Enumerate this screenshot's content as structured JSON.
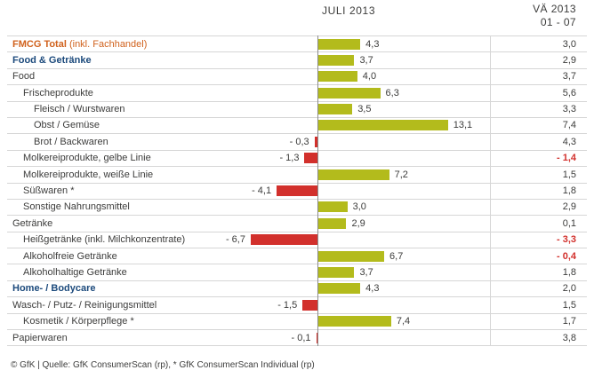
{
  "header": {
    "period_label": "JULI 2013",
    "right_col_line1": "VÄ 2013",
    "right_col_line2": "01 - 07"
  },
  "footer": {
    "source": "© GfK | Quelle: GfK ConsumerScan (rp), * GfK ConsumerScan Individual (rp)"
  },
  "colors": {
    "bar_positive": "#b3bb1c",
    "bar_negative": "#d2302c",
    "label_default": "#3c3c3b",
    "label_total": "#d0611c",
    "label_section": "#1c4a7c",
    "negative_value_text": "#d2302c",
    "grid_line": "#d6d6d6",
    "axis_line": "#8c8c8c"
  },
  "chart_data": {
    "type": "bar",
    "orientation": "horizontal",
    "title": "JULI 2013",
    "right_column_title": "VÄ 2013 01 - 07",
    "unit": "percent change vs. prior year",
    "x_range_hint": [
      -7,
      14
    ],
    "grid": "horizontal row separator lines",
    "legend": "none",
    "rows": [
      {
        "label": "FMCG Total",
        "note": " (inkl. Fachhandel)",
        "indent": 0,
        "style": "total",
        "value": 4.3,
        "value_display": "4,3",
        "vae": 3.0,
        "vae_display": "3,0"
      },
      {
        "label": "Food & Getränke",
        "note": "",
        "indent": 0,
        "style": "section",
        "value": 3.7,
        "value_display": "3,7",
        "vae": 2.9,
        "vae_display": "2,9"
      },
      {
        "label": "Food",
        "note": "",
        "indent": 0,
        "style": "normal",
        "value": 4.0,
        "value_display": "4,0",
        "vae": 3.7,
        "vae_display": "3,7"
      },
      {
        "label": "Frischeprodukte",
        "note": "",
        "indent": 1,
        "style": "normal",
        "value": 6.3,
        "value_display": "6,3",
        "vae": 5.6,
        "vae_display": "5,6"
      },
      {
        "label": "Fleisch / Wurstwaren",
        "note": "",
        "indent": 2,
        "style": "normal",
        "value": 3.5,
        "value_display": "3,5",
        "vae": 3.3,
        "vae_display": "3,3"
      },
      {
        "label": "Obst / Gemüse",
        "note": "",
        "indent": 2,
        "style": "normal",
        "value": 13.1,
        "value_display": "13,1",
        "vae": 7.4,
        "vae_display": "7,4"
      },
      {
        "label": "Brot / Backwaren",
        "note": "",
        "indent": 2,
        "style": "normal",
        "value": -0.3,
        "value_display": "- 0,3",
        "vae": 4.3,
        "vae_display": "4,3"
      },
      {
        "label": "Molkereiprodukte, gelbe Linie",
        "note": "",
        "indent": 1,
        "style": "normal",
        "value": -1.3,
        "value_display": "- 1,3",
        "vae": -1.4,
        "vae_display": "- 1,4"
      },
      {
        "label": "Molkereiprodukte, weiße Linie",
        "note": "",
        "indent": 1,
        "style": "normal",
        "value": 7.2,
        "value_display": "7,2",
        "vae": 1.5,
        "vae_display": "1,5"
      },
      {
        "label": "Süßwaren *",
        "note": "",
        "indent": 1,
        "style": "normal",
        "value": -4.1,
        "value_display": "- 4,1",
        "vae": 1.8,
        "vae_display": "1,8"
      },
      {
        "label": "Sonstige Nahrungsmittel",
        "note": "",
        "indent": 1,
        "style": "normal",
        "value": 3.0,
        "value_display": "3,0",
        "vae": 2.9,
        "vae_display": "2,9"
      },
      {
        "label": "Getränke",
        "note": "",
        "indent": 0,
        "style": "normal",
        "value": 2.9,
        "value_display": "2,9",
        "vae": 0.1,
        "vae_display": "0,1"
      },
      {
        "label": "Heißgetränke (inkl. Milchkonzentrate)",
        "note": "",
        "indent": 1,
        "style": "normal",
        "value": -6.7,
        "value_display": "- 6,7",
        "vae": -3.3,
        "vae_display": "- 3,3"
      },
      {
        "label": "Alkoholfreie Getränke",
        "note": "",
        "indent": 1,
        "style": "normal",
        "value": 6.7,
        "value_display": "6,7",
        "vae": -0.4,
        "vae_display": "- 0,4"
      },
      {
        "label": "Alkoholhaltige Getränke",
        "note": "",
        "indent": 1,
        "style": "normal",
        "value": 3.7,
        "value_display": "3,7",
        "vae": 1.8,
        "vae_display": "1,8"
      },
      {
        "label": "Home- / Bodycare",
        "note": "",
        "indent": 0,
        "style": "section",
        "value": 4.3,
        "value_display": "4,3",
        "vae": 2.0,
        "vae_display": "2,0"
      },
      {
        "label": "Wasch- / Putz- / Reinigungsmittel",
        "note": "",
        "indent": 0,
        "style": "normal",
        "value": -1.5,
        "value_display": "- 1,5",
        "vae": 1.5,
        "vae_display": "1,5"
      },
      {
        "label": "Kosmetik / Körperpflege *",
        "note": "",
        "indent": 1,
        "style": "normal",
        "value": 7.4,
        "value_display": "7,4",
        "vae": 1.7,
        "vae_display": "1,7"
      },
      {
        "label": "Papierwaren",
        "note": "",
        "indent": 0,
        "style": "normal",
        "value": -0.1,
        "value_display": "- 0,1",
        "vae": 3.8,
        "vae_display": "3,8"
      }
    ]
  }
}
